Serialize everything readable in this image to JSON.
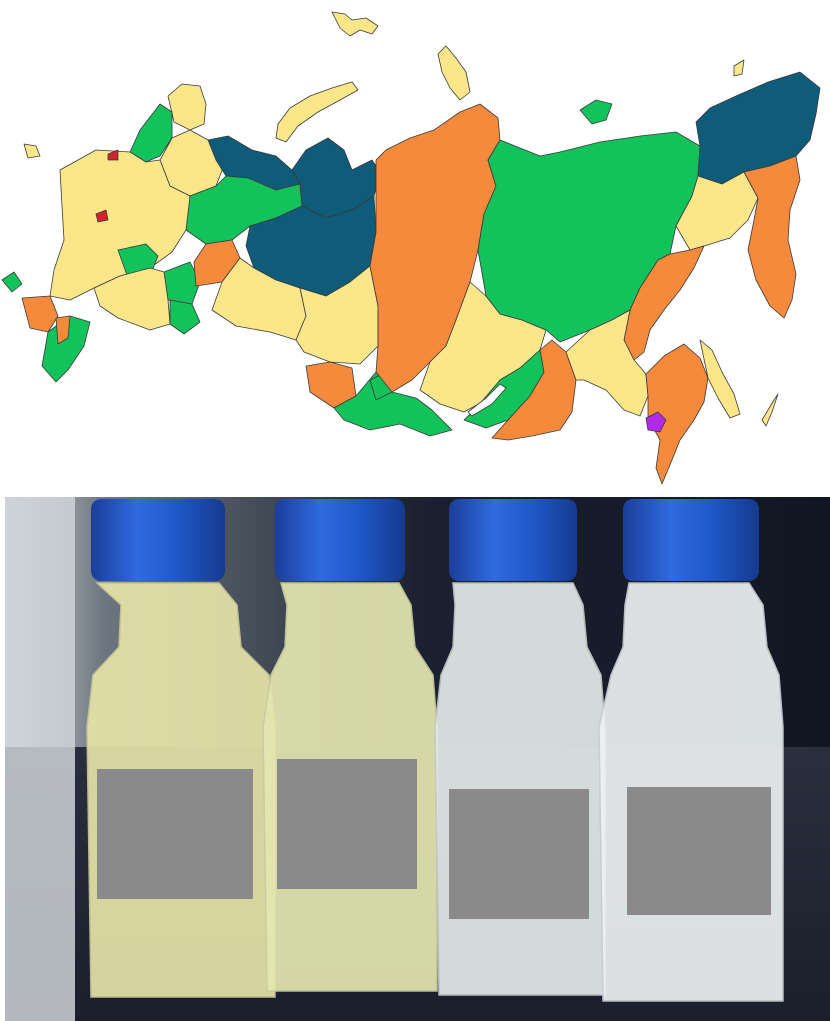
{
  "map": {
    "legend_colors": {
      "yellow": "#fce68a",
      "green": "#12c25a",
      "orange": "#f58a3c",
      "dark_blue": "#0f5b7a",
      "red": "#d2232a",
      "purple": "#b12ae6"
    },
    "background": "#ffffff",
    "border_color": "#3a3a3a"
  },
  "photo": {
    "bottle_count": 4,
    "cap_color": "#1f58c8",
    "label_cover_color": "#8a8a8a",
    "liquid_tints": [
      "#e6e4a8",
      "#e4e7b0",
      "#e4eae8",
      "#edf1f3"
    ]
  }
}
